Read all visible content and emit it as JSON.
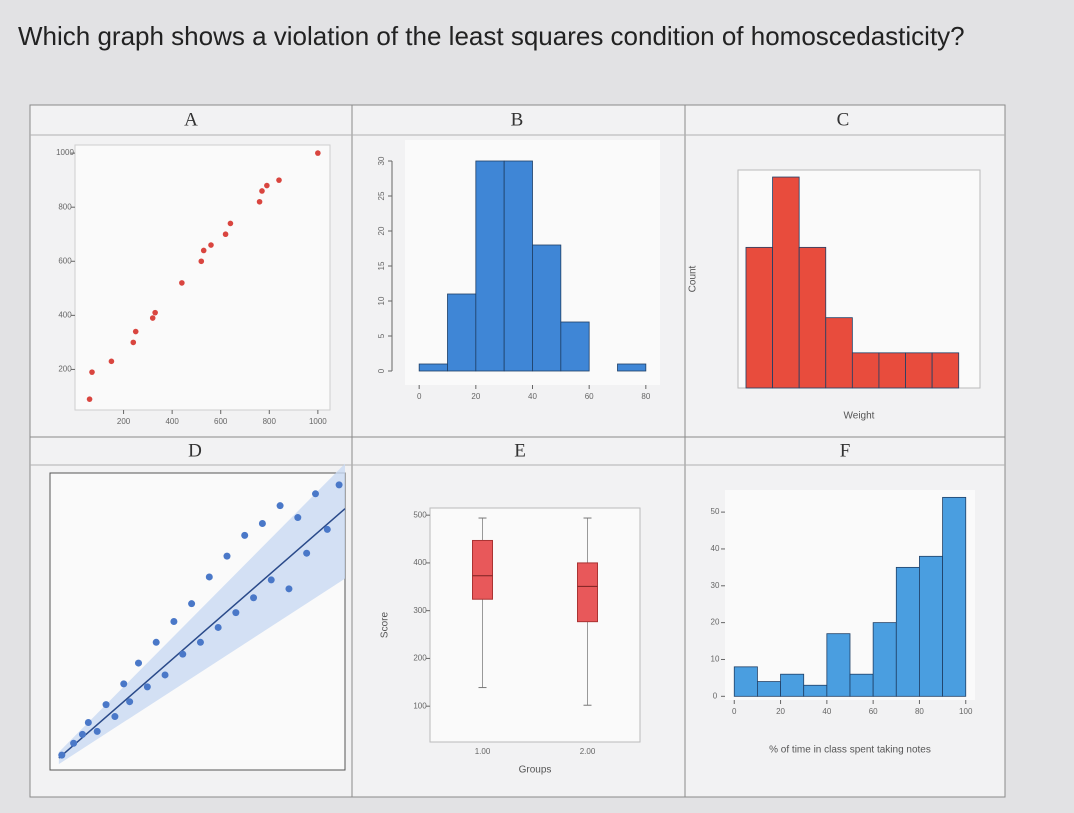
{
  "question": "Which graph shows a violation of the least squares condition of homoscedasticity?",
  "chart_data": [
    {
      "type": "scatter",
      "title": "A",
      "color": "#d9453f",
      "x": [
        60,
        70,
        150,
        240,
        250,
        320,
        330,
        440,
        520,
        530,
        560,
        620,
        640,
        760,
        770,
        790,
        840,
        1000
      ],
      "values": [
        90,
        190,
        230,
        300,
        340,
        390,
        410,
        520,
        600,
        640,
        660,
        700,
        740,
        820,
        860,
        880,
        900,
        1000
      ],
      "xlim": [
        0,
        1050
      ],
      "ylim": [
        50,
        1030
      ],
      "xticks": [
        200,
        400,
        600,
        800,
        1000
      ],
      "yticks": [
        200,
        400,
        600,
        800,
        1000
      ]
    },
    {
      "type": "histogram",
      "title": "B",
      "color": "#3f86d6",
      "bins": [
        0,
        10,
        20,
        30,
        40,
        50,
        60,
        70,
        80
      ],
      "counts": [
        1,
        11,
        30,
        30,
        18,
        7,
        0,
        1
      ],
      "xlim": [
        -5,
        85
      ],
      "ylim": [
        -2,
        33
      ],
      "xticks": [
        0,
        20,
        40,
        60,
        80
      ],
      "yticks": [
        0,
        5,
        10,
        15,
        20,
        25,
        30
      ]
    },
    {
      "type": "histogram",
      "title": "C",
      "color": "#e84c3d",
      "xlabel": "Weight",
      "ylabel": "Count",
      "bins": [
        0,
        1,
        2,
        3,
        4,
        5,
        6,
        7,
        8
      ],
      "counts": [
        4,
        6,
        4,
        2,
        1,
        1,
        1,
        1
      ],
      "xlim": [
        -0.3,
        8.8
      ],
      "ylim": [
        0,
        6.2
      ]
    },
    {
      "type": "scatter",
      "title": "D",
      "color": "#4a78c8",
      "fit": true,
      "x": [
        0.4,
        0.8,
        1.1,
        1.3,
        1.6,
        1.9,
        2.2,
        2.5,
        2.7,
        3.0,
        3.3,
        3.6,
        3.9,
        4.2,
        4.5,
        4.8,
        5.1,
        5.4,
        5.7,
        6.0,
        6.3,
        6.6,
        6.9,
        7.2,
        7.5,
        7.8,
        8.1,
        8.4,
        8.7,
        9.0,
        9.4,
        9.8
      ],
      "values": [
        0.5,
        0.9,
        1.2,
        1.6,
        1.3,
        2.2,
        1.8,
        2.9,
        2.3,
        3.6,
        2.8,
        4.3,
        3.2,
        5.0,
        3.9,
        5.6,
        4.3,
        6.5,
        4.8,
        7.2,
        5.3,
        7.9,
        5.8,
        8.3,
        6.4,
        8.9,
        6.1,
        8.5,
        7.3,
        9.3,
        8.1,
        9.6
      ],
      "fit_line": {
        "x": [
          0.3,
          10
        ],
        "y": [
          0.4,
          8.8
        ]
      },
      "xlim": [
        0,
        10
      ],
      "ylim": [
        0,
        10
      ]
    },
    {
      "type": "box",
      "title": "E",
      "color": "#e8585a",
      "xlabel": "Groups",
      "ylabel": "Score",
      "categories": [
        "1.00",
        "2.00"
      ],
      "boxes": [
        {
          "min": 139,
          "q1": 324,
          "median": 373,
          "q3": 447,
          "max": 494
        },
        {
          "min": 102,
          "q1": 277,
          "median": 351,
          "q3": 400,
          "max": 494
        }
      ],
      "ylim": [
        25,
        515
      ],
      "yticks": [
        100,
        200,
        300,
        400,
        500
      ]
    },
    {
      "type": "histogram",
      "title": "F",
      "color": "#4a9ee0",
      "xlabel": "% of time in class spent taking notes",
      "bins": [
        0,
        10,
        20,
        30,
        40,
        50,
        60,
        70,
        80,
        90,
        100
      ],
      "counts": [
        8,
        4,
        6,
        3,
        17,
        6,
        20,
        35,
        38,
        54
      ],
      "xlim": [
        -4,
        104
      ],
      "ylim": [
        -1,
        56
      ],
      "xticks": [
        0,
        20,
        40,
        60,
        80,
        100
      ],
      "yticks": [
        0,
        10,
        20,
        30,
        40,
        50
      ]
    }
  ]
}
